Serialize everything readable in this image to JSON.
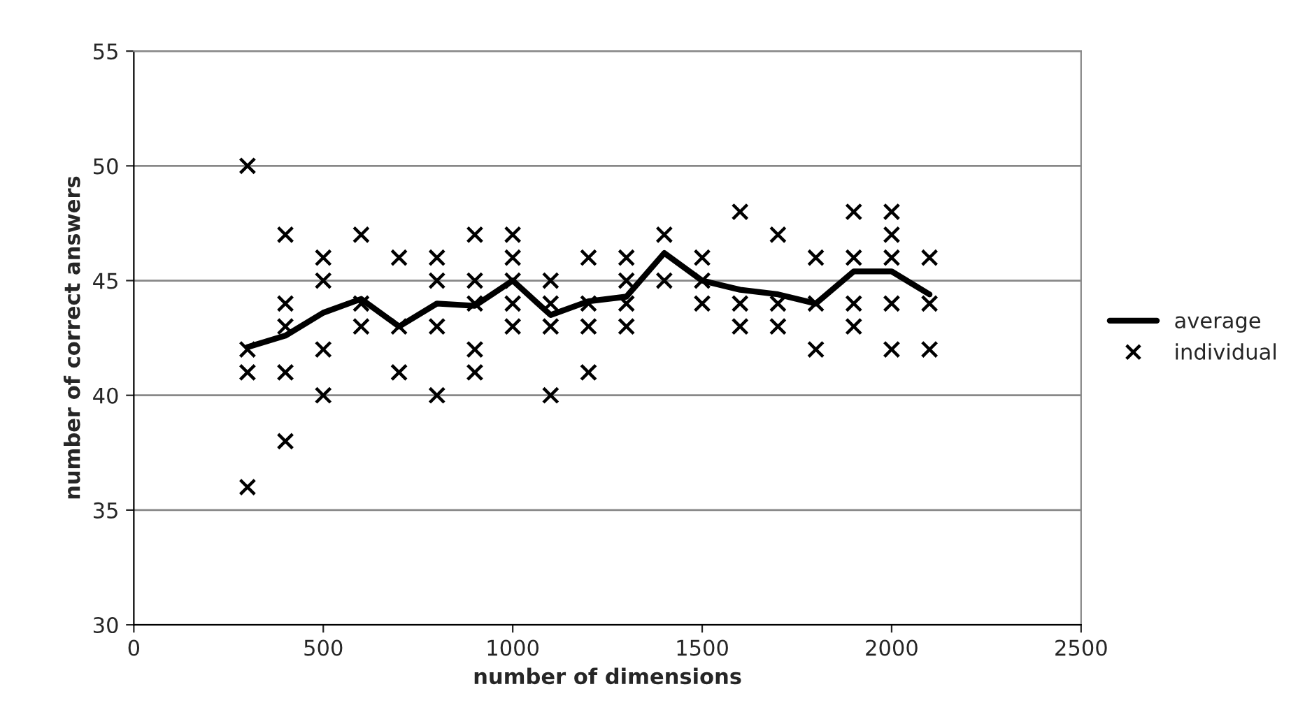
{
  "chart_data": {
    "type": "line",
    "xlabel": "number of dimensions",
    "ylabel": "number of correct answers",
    "xlim": [
      0,
      2500
    ],
    "xticks": [
      0,
      500,
      1000,
      1500,
      2000,
      2500
    ],
    "ylim": [
      30,
      55
    ],
    "yticks": [
      30,
      35,
      40,
      45,
      50,
      55
    ],
    "grid": "y",
    "legend": "right",
    "series": [
      {
        "name": "average",
        "color": "#000000",
        "marker": "none",
        "line_style": "solid",
        "x": [
          300,
          400,
          500,
          600,
          700,
          800,
          900,
          1000,
          1100,
          1200,
          1300,
          1400,
          1500,
          1600,
          1700,
          1800,
          1900,
          2000,
          2100
        ],
        "values": [
          42.1,
          42.6,
          43.6,
          44.2,
          43.0,
          44.0,
          43.9,
          45.0,
          43.5,
          44.1,
          44.3,
          46.2,
          45.0,
          44.6,
          44.4,
          44.0,
          45.4,
          45.4,
          44.4
        ]
      },
      {
        "name": "individual",
        "type": "scatter",
        "color": "#000000",
        "marker": "cross",
        "x": [
          300,
          300,
          300,
          300,
          400,
          400,
          400,
          400,
          400,
          500,
          500,
          500,
          500,
          600,
          600,
          600,
          700,
          700,
          700,
          800,
          800,
          800,
          800,
          900,
          900,
          900,
          900,
          900,
          1000,
          1000,
          1000,
          1000,
          1000,
          1100,
          1100,
          1100,
          1100,
          1200,
          1200,
          1200,
          1200,
          1300,
          1300,
          1300,
          1300,
          1400,
          1400,
          1500,
          1500,
          1500,
          1600,
          1600,
          1600,
          1700,
          1700,
          1700,
          1800,
          1800,
          1800,
          1900,
          1900,
          1900,
          1900,
          2000,
          2000,
          2000,
          2000,
          2000,
          2100,
          2100,
          2100
        ],
        "values": [
          50,
          42,
          41,
          36,
          47,
          44,
          43,
          41,
          38,
          46,
          45,
          42,
          40,
          47,
          44,
          43,
          46,
          43,
          41,
          46,
          45,
          43,
          40,
          47,
          45,
          44,
          42,
          41,
          47,
          46,
          45,
          44,
          43,
          45,
          44,
          43,
          40,
          46,
          44,
          43,
          41,
          46,
          45,
          44,
          43,
          47,
          45,
          46,
          45,
          44,
          48,
          44,
          43,
          47,
          44,
          43,
          46,
          44,
          42,
          48,
          46,
          44,
          43,
          48,
          47,
          46,
          44,
          42,
          46,
          44,
          42
        ]
      }
    ]
  }
}
